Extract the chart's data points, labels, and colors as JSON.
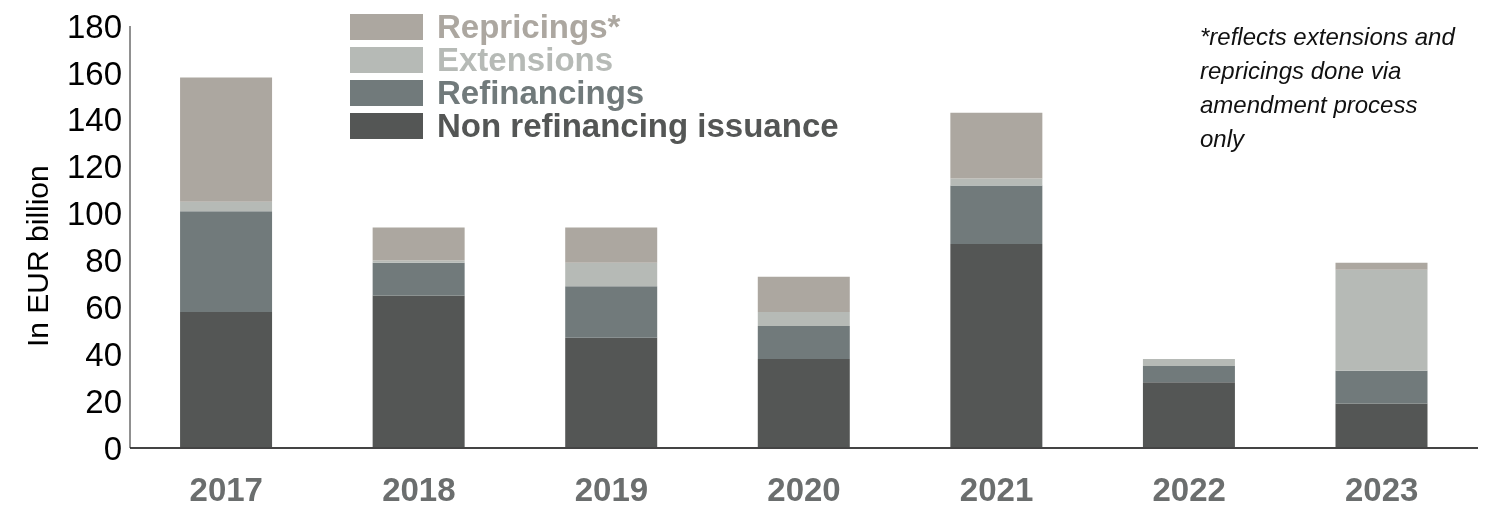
{
  "chart_data": {
    "type": "bar",
    "stacked": true,
    "ylabel": "In EUR billion",
    "categories": [
      "2017",
      "2018",
      "2019",
      "2020",
      "2021",
      "2022",
      "2023"
    ],
    "series": [
      {
        "name": "Non refinancing issuance",
        "color": "#545655",
        "values": [
          58,
          65,
          47,
          38,
          87,
          28,
          19
        ]
      },
      {
        "name": "Refinancings",
        "color": "#717a7b",
        "values": [
          43,
          14,
          22,
          14,
          25,
          7,
          14
        ]
      },
      {
        "name": "Extensions",
        "color": "#b6bab6",
        "values": [
          4,
          1,
          10,
          6,
          3,
          3,
          43
        ]
      },
      {
        "name": "Repricings*",
        "color": "#aca7a0",
        "values": [
          53,
          14,
          15,
          15,
          28,
          0,
          3
        ]
      }
    ],
    "ylim": [
      0,
      180
    ],
    "yticks": [
      0,
      20,
      40,
      60,
      80,
      100,
      120,
      140,
      160,
      180
    ],
    "grid": false,
    "legend": "top left",
    "annotations": [
      "*reflects extensions and repricings done via amendment process only"
    ]
  }
}
